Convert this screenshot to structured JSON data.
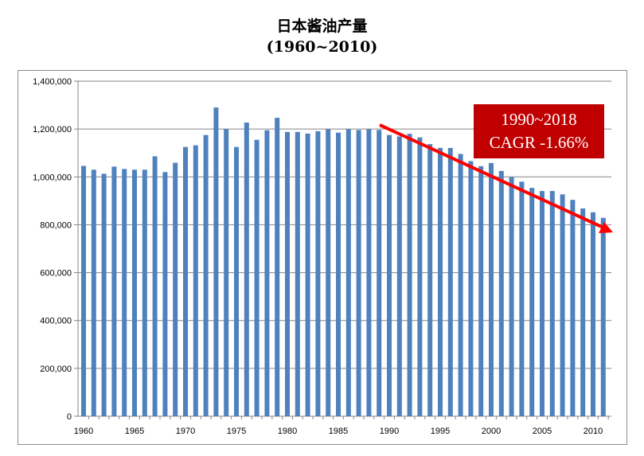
{
  "chart_data": {
    "type": "bar",
    "title": "日本酱油产量",
    "subtitle": "(1960~2010)",
    "xlabel": "",
    "ylabel": "",
    "ylim": [
      0,
      1400000
    ],
    "yticks": [
      "0",
      "200,000",
      "400,000",
      "600,000",
      "800,000",
      "1,000,000",
      "1,200,000",
      "1,400,000"
    ],
    "xticks": [
      "1960",
      "1965",
      "1970",
      "1975",
      "1980",
      "1985",
      "1990",
      "1995",
      "2000",
      "2005",
      "2010"
    ],
    "grid": true,
    "bar_color": "#4f81bd",
    "categories": [
      1960,
      1961,
      1962,
      1963,
      1964,
      1965,
      1966,
      1967,
      1968,
      1969,
      1970,
      1971,
      1972,
      1973,
      1974,
      1975,
      1976,
      1977,
      1978,
      1979,
      1980,
      1981,
      1982,
      1983,
      1984,
      1985,
      1986,
      1987,
      1988,
      1989,
      1990,
      1991,
      1992,
      1993,
      1994,
      1995,
      1996,
      1997,
      1998,
      1999,
      2000,
      2001,
      2002,
      2003,
      2004,
      2005,
      2006,
      2007,
      2008,
      2009,
      2010,
      2011
    ],
    "values": [
      1046000,
      1030000,
      1013000,
      1043000,
      1033000,
      1030000,
      1030000,
      1086000,
      1020000,
      1059000,
      1125000,
      1132000,
      1175000,
      1290000,
      1200000,
      1125000,
      1227000,
      1155000,
      1195000,
      1247000,
      1188000,
      1188000,
      1181000,
      1191000,
      1199000,
      1185000,
      1199000,
      1196000,
      1199000,
      1196000,
      1175000,
      1169000,
      1180000,
      1165000,
      1137000,
      1121000,
      1121000,
      1096000,
      1066000,
      1045000,
      1058000,
      1025000,
      999000,
      980000,
      954000,
      941000,
      941000,
      927000,
      904000,
      868000,
      852000,
      829000
    ],
    "annotation": {
      "line1": "1990~2018",
      "line2": "CAGR -1.66%",
      "box_color": "#c00000",
      "arrow_color": "#ff0000"
    }
  }
}
